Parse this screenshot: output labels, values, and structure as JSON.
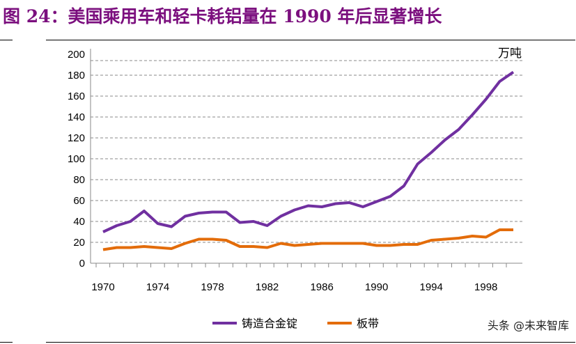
{
  "title": "图 24：美国乘用车和轻卡耗铝量在 1990 年后显著增长",
  "watermark": "头条 @未来智库",
  "chart_data": {
    "type": "line",
    "title": "图 24：美国乘用车和轻卡耗铝量在 1990 年后显著增长",
    "unit": "万吨",
    "x": [
      1970,
      1971,
      1972,
      1973,
      1974,
      1975,
      1976,
      1977,
      1978,
      1979,
      1980,
      1981,
      1982,
      1983,
      1984,
      1985,
      1986,
      1987,
      1988,
      1989,
      1990,
      1991,
      1992,
      1993,
      1994,
      1995,
      1996,
      1997,
      1998,
      1999,
      2000
    ],
    "x_tick_labels": [
      "1970",
      "1974",
      "1978",
      "1982",
      "1986",
      "1990",
      "1994",
      "1998"
    ],
    "y_tick_labels": [
      "0",
      "20",
      "40",
      "60",
      "80",
      "100",
      "120",
      "140",
      "160",
      "180",
      "200"
    ],
    "ylim": [
      0,
      200
    ],
    "grid": true,
    "legend": "bottom",
    "series": [
      {
        "name": "铸造合金锭",
        "color": "#7030a0",
        "values": [
          30,
          36,
          40,
          50,
          38,
          35,
          45,
          48,
          49,
          49,
          39,
          40,
          36,
          45,
          51,
          55,
          54,
          57,
          58,
          54,
          59,
          64,
          74,
          95,
          106,
          118,
          128,
          142,
          157,
          174,
          183
        ]
      },
      {
        "name": "板带",
        "color": "#e36c0a",
        "values": [
          13,
          15,
          15,
          16,
          15,
          14,
          19,
          23,
          23,
          22,
          16,
          16,
          15,
          19,
          17,
          18,
          19,
          19,
          19,
          19,
          17,
          17,
          18,
          18,
          22,
          23,
          24,
          26,
          25,
          32,
          32
        ]
      }
    ]
  }
}
